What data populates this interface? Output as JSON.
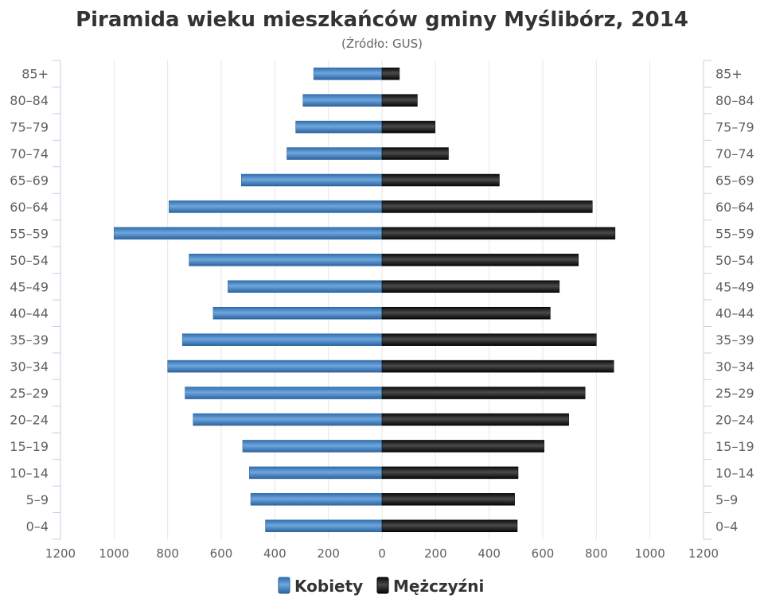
{
  "chart_data": {
    "type": "bar",
    "orientation": "horizontal",
    "title": "Piramida wieku mieszkańców gminy Myślibórz, 2014",
    "subtitle": "(Źródło: GUS)",
    "categories": [
      "85+",
      "80-84",
      "75-79",
      "70-74",
      "65-69",
      "60-64",
      "55-59",
      "50-54",
      "45-49",
      "40-44",
      "35-39",
      "30-34",
      "25-29",
      "20-24",
      "15-19",
      "10-14",
      "5-9",
      "0-4"
    ],
    "category_labels_display": [
      "85+",
      "80–84",
      "75–79",
      "70–74",
      "65–69",
      "60–64",
      "55–59",
      "50–54",
      "45–49",
      "40–44",
      "35–39",
      "30–34",
      "25–29",
      "20–24",
      "15–19",
      "10–14",
      "5–9",
      "0–4"
    ],
    "series": [
      {
        "name": "Kobiety",
        "values": [
          255,
          295,
          322,
          355,
          525,
          795,
          1000,
          720,
          575,
          630,
          745,
          800,
          735,
          705,
          520,
          495,
          490,
          435
        ]
      },
      {
        "name": "Mężczyźni",
        "values": [
          65,
          132,
          198,
          248,
          438,
          785,
          870,
          733,
          662,
          628,
          800,
          865,
          758,
          697,
          605,
          508,
          495,
          505
        ]
      }
    ],
    "xlim": [
      -1200,
      1200
    ],
    "x_ticks": [
      -1200,
      -1000,
      -800,
      -600,
      -400,
      -200,
      0,
      200,
      400,
      600,
      800,
      1000,
      1200
    ],
    "x_tick_labels": [
      "1200",
      "1000",
      "800",
      "600",
      "400",
      "200",
      "0",
      "200",
      "400",
      "600",
      "800",
      "1000",
      "1200"
    ],
    "grid": "vertical",
    "legend_position": "bottom-center",
    "colors": {
      "Kobiety": "#3f7fbf",
      "Mężczyźni": "#1a1a1a",
      "grid": "#e6e6e6",
      "axis": "#c0d0e0"
    }
  }
}
